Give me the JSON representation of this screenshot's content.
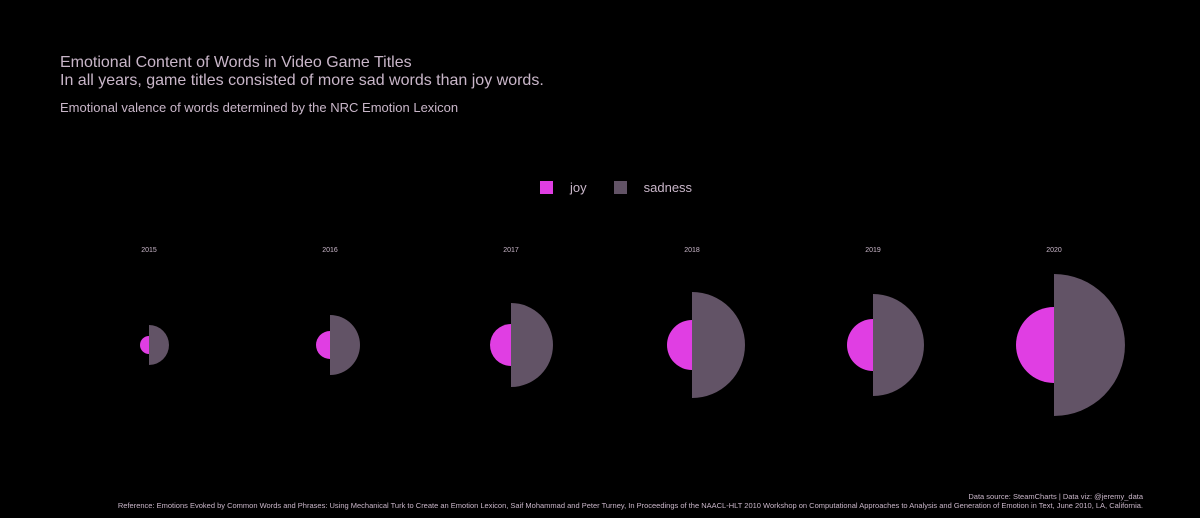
{
  "title": "Emotional Content of Words in Video Game Titles",
  "subtitle": "In all years, game titles consisted of more sad words than joy words.",
  "caption": "Emotional valence of words determined by the NRC Emotion Lexicon",
  "legend": [
    {
      "label": "joy",
      "color": "#e03ee3"
    },
    {
      "label": "sadness",
      "color": "#625366"
    }
  ],
  "footer": {
    "source": "Data source: SteamCharts | Data viz: @jeremy_data",
    "reference": "Reference: Emotions Evoked by Common Words and Phrases: Using Mechanical Turk to Create an Emotion Lexicon, Saif Mohammad and Peter Turney, In Proceedings of the NAACL-HLT 2010 Workshop on Computational Approaches to Analysis and Generation of Emotion in Text, June 2010, LA, California."
  },
  "chart_data": {
    "type": "half-circle",
    "categories": [
      "2015",
      "2016",
      "2017",
      "2018",
      "2019",
      "2020"
    ],
    "series": [
      {
        "name": "joy",
        "values": [
          9,
          14,
          21,
          25,
          26,
          38
        ]
      },
      {
        "name": "sadness",
        "values": [
          20,
          30,
          42,
          53,
          51,
          71
        ]
      }
    ],
    "colors": {
      "joy": "#e03ee3",
      "sadness": "#625366"
    }
  }
}
